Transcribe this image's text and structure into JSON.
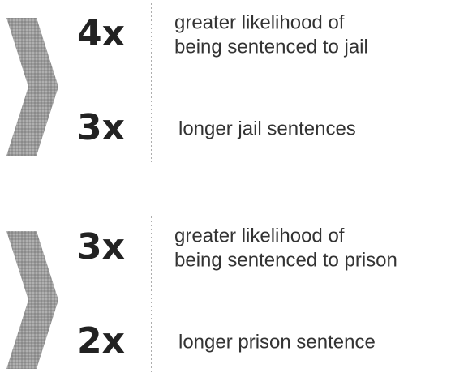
{
  "groups": [
    {
      "items": [
        {
          "multiplier": "4x",
          "lines": [
            "greater likelihood of",
            "being sentenced to jail"
          ]
        },
        {
          "multiplier": "3x",
          "lines": [
            "longer jail sentences"
          ]
        }
      ]
    },
    {
      "items": [
        {
          "multiplier": "3x",
          "lines": [
            "greater likelihood of",
            "being sentenced to prison"
          ]
        },
        {
          "multiplier": "2x",
          "lines": [
            "longer prison sentence"
          ]
        }
      ]
    }
  ]
}
